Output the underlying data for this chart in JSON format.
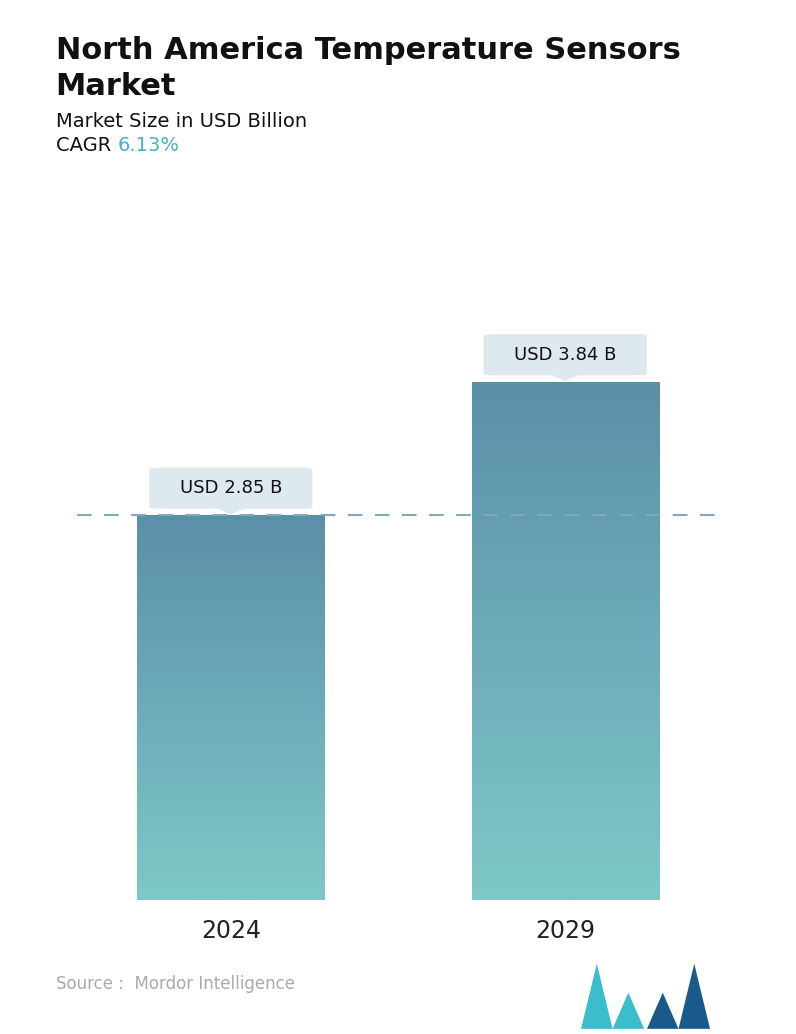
{
  "title_line1": "North America Temperature Sensors",
  "title_line2": "Market",
  "subtitle": "Market Size in USD Billion",
  "cagr_label": "CAGR  ",
  "cagr_value": "6.13%",
  "cagr_color": "#4aaec9",
  "categories": [
    "2024",
    "2029"
  ],
  "values": [
    2.85,
    3.84
  ],
  "bar_labels": [
    "USD 2.85 B",
    "USD 3.84 B"
  ],
  "bar_color_top": "#5b8fa8",
  "bar_color_bottom": "#7ec8c8",
  "ylim": [
    0,
    4.6
  ],
  "dashed_line_y": 2.85,
  "dashed_line_color": "#7aaabb",
  "background_color": "#ffffff",
  "source_text": "Source :  Mordor Intelligence",
  "source_color": "#aaaaaa",
  "title_color": "#111111",
  "tick_color": "#222222",
  "annotation_bg": "#dde8ef",
  "annotation_text_color": "#111111"
}
